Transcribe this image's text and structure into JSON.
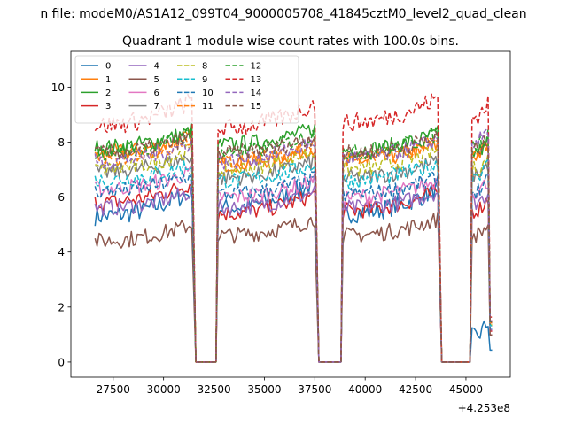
{
  "chart_data": {
    "type": "line",
    "suptitle": "n file: modeM0/AS1A12_099T04_9000005708_41845cztM0_level2_quad_clean",
    "title": "Quadrant 1 module wise count rates with 100.0s bins.",
    "xlabel": "",
    "ylabel": "",
    "offset_label": "+4.253e8",
    "xlim": [
      25400,
      47200
    ],
    "ylim": [
      -0.55,
      11.3
    ],
    "xticks": [
      27500,
      30000,
      32500,
      35000,
      37500,
      40000,
      42500,
      45000
    ],
    "xtick_labels": [
      "27500",
      "30000",
      "32500",
      "35000",
      "37500",
      "40000",
      "42500",
      "45000"
    ],
    "yticks": [
      0,
      2,
      4,
      6,
      8,
      10
    ],
    "ytick_labels": [
      "0",
      "2",
      "4",
      "6",
      "8",
      "10"
    ],
    "bin_seconds": 100,
    "legend_location": "upper-left",
    "segments": [
      {
        "start": 26600,
        "end": 31400
      },
      {
        "start": 32700,
        "end": 37500
      },
      {
        "start": 38900,
        "end": 43600
      },
      {
        "start": 45300,
        "end": 46300
      }
    ],
    "gaps": [
      {
        "start": 31600,
        "end": 32600
      },
      {
        "start": 37700,
        "end": 38800
      },
      {
        "start": 43800,
        "end": 45200
      }
    ],
    "series": [
      {
        "name": "0",
        "color": "#1f77b4",
        "dash": "solid",
        "base": [
          5.3,
          5.6,
          5.4,
          0.9
        ],
        "rise": 0.9,
        "noise": 0.35
      },
      {
        "name": "1",
        "color": "#ff7f0e",
        "dash": "solid",
        "base": [
          7.6,
          7.2,
          7.3,
          7.5
        ],
        "rise": 0.6,
        "noise": 0.3
      },
      {
        "name": "2",
        "color": "#2ca02c",
        "dash": "solid",
        "base": [
          7.8,
          7.9,
          7.7,
          7.6
        ],
        "rise": 0.6,
        "noise": 0.3
      },
      {
        "name": "3",
        "color": "#d62728",
        "dash": "solid",
        "base": [
          5.8,
          5.4,
          5.5,
          5.5
        ],
        "rise": 0.7,
        "noise": 0.3
      },
      {
        "name": "4",
        "color": "#9467bd",
        "dash": "solid",
        "base": [
          5.6,
          5.6,
          5.6,
          5.8
        ],
        "rise": 0.6,
        "noise": 0.3
      },
      {
        "name": "5",
        "color": "#8c564b",
        "dash": "solid",
        "base": [
          4.4,
          4.6,
          4.6,
          4.6
        ],
        "rise": 0.6,
        "noise": 0.3
      },
      {
        "name": "6",
        "color": "#e377c2",
        "dash": "solid",
        "base": [
          6.3,
          6.0,
          6.0,
          6.2
        ],
        "rise": 0.6,
        "noise": 0.3
      },
      {
        "name": "7",
        "color": "#7f7f7f",
        "dash": "solid",
        "base": [
          6.9,
          6.7,
          6.7,
          6.8
        ],
        "rise": 0.6,
        "noise": 0.3
      },
      {
        "name": "8",
        "color": "#bcbd22",
        "dash": "dashed",
        "base": [
          7.0,
          7.0,
          7.0,
          7.0
        ],
        "rise": 0.7,
        "noise": 0.3
      },
      {
        "name": "9",
        "color": "#17becf",
        "dash": "dashed",
        "base": [
          6.6,
          6.6,
          6.6,
          6.8
        ],
        "rise": 0.6,
        "noise": 0.3
      },
      {
        "name": "10",
        "color": "#1f77b4",
        "dash": "dashed",
        "base": [
          6.2,
          6.1,
          6.1,
          6.2
        ],
        "rise": 0.6,
        "noise": 0.3
      },
      {
        "name": "11",
        "color": "#ff7f0e",
        "dash": "dashed",
        "base": [
          7.4,
          7.3,
          7.4,
          7.5
        ],
        "rise": 0.6,
        "noise": 0.3
      },
      {
        "name": "12",
        "color": "#2ca02c",
        "dash": "dashed",
        "base": [
          7.6,
          7.6,
          7.6,
          7.9
        ],
        "rise": 0.7,
        "noise": 0.3
      },
      {
        "name": "13",
        "color": "#d62728",
        "dash": "dashed",
        "base": [
          8.6,
          8.5,
          8.7,
          8.9
        ],
        "rise": 0.9,
        "noise": 0.35
      },
      {
        "name": "14",
        "color": "#9467bd",
        "dash": "dashed",
        "base": [
          7.3,
          7.3,
          7.4,
          8.0
        ],
        "rise": 0.7,
        "noise": 0.3
      },
      {
        "name": "15",
        "color": "#8c564b",
        "dash": "dashed",
        "base": [
          7.6,
          7.6,
          7.6,
          7.7
        ],
        "rise": 0.6,
        "noise": 0.3
      }
    ]
  }
}
